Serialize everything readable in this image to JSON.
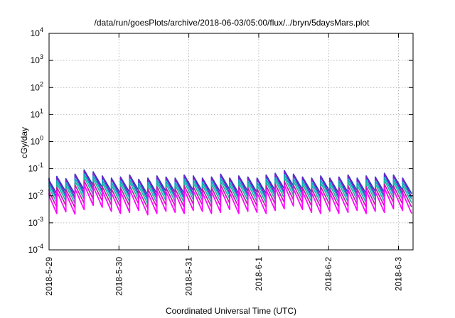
{
  "chart_data": {
    "type": "line",
    "title": "/data/run/goesPlots/archive/2018-06-03/05:00/flux/../bryn/5daysMars.plot",
    "xlabel": "Coordinated Universal Time (UTC)",
    "ylabel": "cGy/day",
    "y_scale": "log",
    "ylim": [
      0.0001,
      10000
    ],
    "y_ticks": [
      {
        "value": 0.0001,
        "base": "10",
        "exp": "-4"
      },
      {
        "value": 0.001,
        "base": "10",
        "exp": "-3"
      },
      {
        "value": 0.01,
        "base": "10",
        "exp": "-2"
      },
      {
        "value": 0.1,
        "base": "10",
        "exp": "-1"
      },
      {
        "value": 1,
        "base": "10",
        "exp": "0"
      },
      {
        "value": 10,
        "base": "10",
        "exp": "1"
      },
      {
        "value": 100,
        "base": "10",
        "exp": "2"
      },
      {
        "value": 1000,
        "base": "10",
        "exp": "3"
      },
      {
        "value": 10000,
        "base": "10",
        "exp": "4"
      }
    ],
    "xlim": [
      "2018-05-29 00:00",
      "2018-06-03 05:00"
    ],
    "x_ticks": [
      "2018-5-29",
      "2018-5-30",
      "2018-5-31",
      "2018-6-1",
      "2018-6-2",
      "2018-6-3"
    ],
    "grid": true,
    "legend": "none",
    "pattern_note": "sawtooth ~ every 4.4 h; each series jumps up at a pulse then decays",
    "series": [
      {
        "color": "#1f3fbf",
        "peak": 0.045,
        "trough": 0.012
      },
      {
        "color": "#7a1fcf",
        "peak": 0.042,
        "trough": 0.009
      },
      {
        "color": "#0aa8c8",
        "peak": 0.032,
        "trough": 0.0075
      },
      {
        "color": "#1cb5a0",
        "peak": 0.025,
        "trough": 0.0055
      },
      {
        "color": "#c21ba8",
        "peak": 0.018,
        "trough": 0.0038
      },
      {
        "color": "#ff00ff",
        "peak": 0.013,
        "trough": 0.0022
      }
    ],
    "amplitude_factors": [
      1.0,
      1.15,
      0.95,
      1.4,
      2.0,
      1.7,
      1.2,
      1.0,
      1.1,
      1.3,
      0.9,
      1.0,
      1.2,
      1.1,
      1.0,
      1.3,
      1.2,
      1.0,
      1.1,
      1.4,
      1.0,
      1.2,
      1.1,
      1.0,
      1.3,
      1.5,
      1.9,
      1.4,
      1.1,
      1.0,
      1.2,
      1.0,
      1.1,
      1.3,
      1.0,
      1.2,
      1.1,
      1.5,
      1.3,
      1.0
    ]
  }
}
